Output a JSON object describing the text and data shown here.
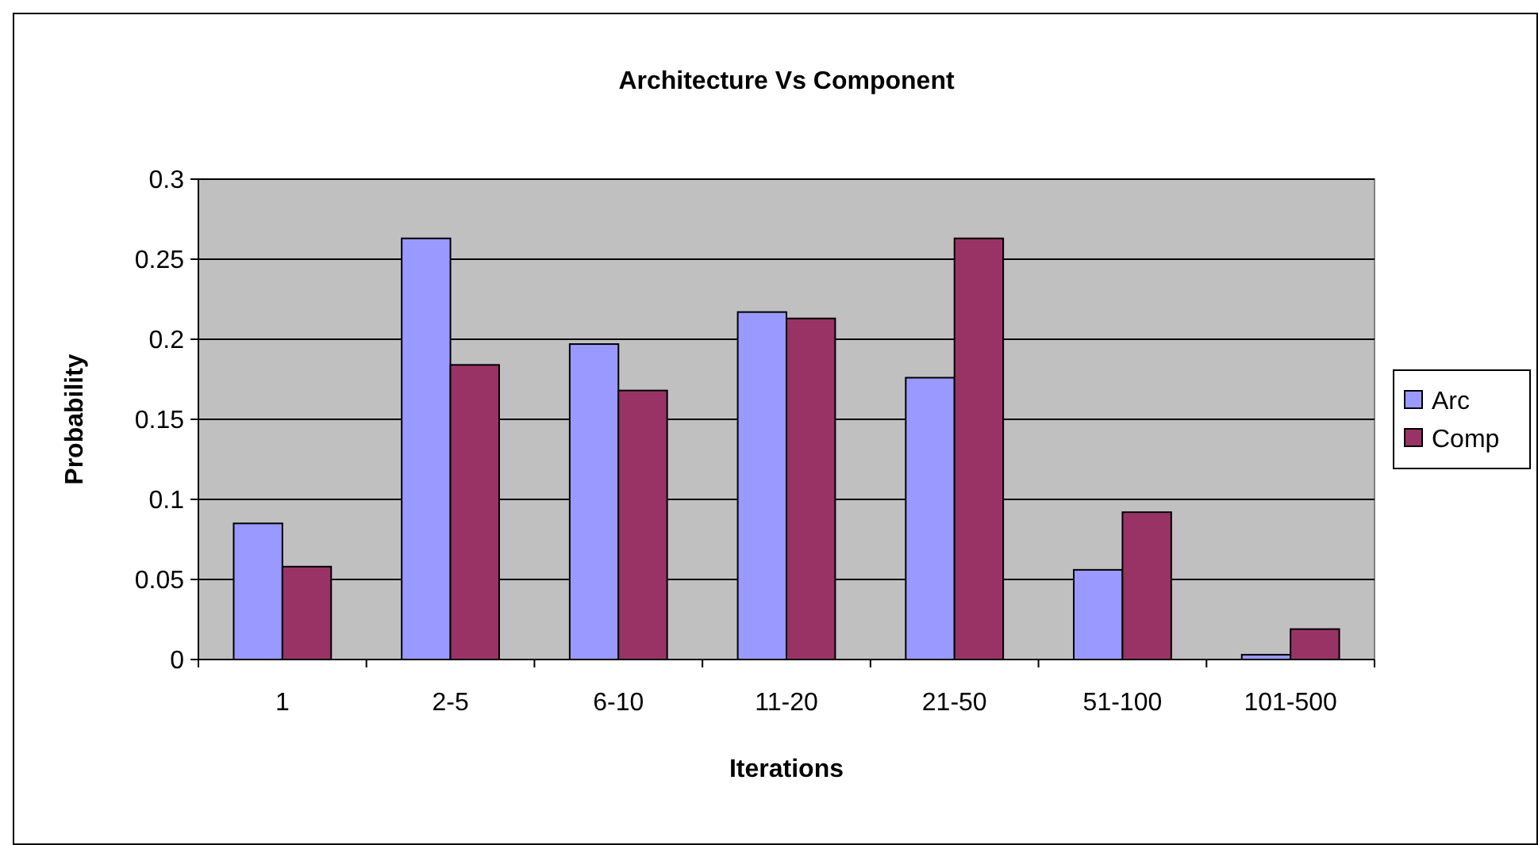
{
  "chart_data": {
    "type": "bar",
    "title": "Architecture Vs Component",
    "xlabel": "Iterations",
    "ylabel": "Probability",
    "categories": [
      "1",
      "2-5",
      "6-10",
      "11-20",
      "21-50",
      "51-100",
      "101-500"
    ],
    "series": [
      {
        "name": "Arc",
        "color": "#9999ff",
        "values": [
          0.085,
          0.263,
          0.197,
          0.217,
          0.176,
          0.056,
          0.003
        ]
      },
      {
        "name": "Comp",
        "color": "#993366",
        "values": [
          0.058,
          0.184,
          0.168,
          0.213,
          0.263,
          0.092,
          0.019
        ]
      }
    ],
    "ylim": [
      0,
      0.3
    ],
    "yticks": [
      0,
      0.05,
      0.1,
      0.15,
      0.2,
      0.25,
      0.3
    ],
    "grid": "y",
    "legend": "right"
  }
}
